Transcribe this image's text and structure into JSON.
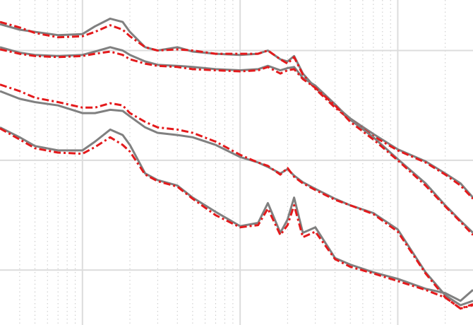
{
  "chart_data": {
    "type": "line",
    "xscale": "log",
    "grid": true,
    "xlim": [
      0.3,
      300
    ],
    "ylim": [
      -2.5,
      0.46
    ],
    "xticks": [
      1,
      10,
      100
    ],
    "yticks": [
      -2,
      -1,
      0
    ],
    "xminorticks": [
      0.4,
      0.5,
      0.6,
      0.7,
      0.8,
      0.9,
      2,
      3,
      4,
      5,
      6,
      7,
      8,
      9,
      20,
      30,
      40,
      50,
      60,
      70,
      80,
      90,
      200
    ],
    "x": [
      0.3,
      0.4,
      0.5,
      0.7,
      1,
      1.2,
      1.5,
      1.8,
      2,
      2.5,
      3,
      4,
      5,
      7,
      10,
      13,
      15,
      18,
      20,
      22,
      25,
      30,
      40,
      50,
      70,
      100,
      150,
      200,
      250,
      300
    ],
    "series": [
      {
        "color": "#808080",
        "style": "solid",
        "values": [
          0.24,
          0.19,
          0.17,
          0.14,
          0.15,
          0.22,
          0.29,
          0.26,
          0.17,
          0.03,
          0,
          0.03,
          -0.01,
          -0.03,
          -0.04,
          -0.03,
          0,
          -0.08,
          -0.1,
          -0.05,
          -0.21,
          -0.34,
          -0.5,
          -0.62,
          -0.76,
          -0.9,
          -1.01,
          -1.12,
          -1.21,
          -1.34
        ]
      },
      {
        "color": "#e41a1c",
        "style": "dashdot",
        "values": [
          0.26,
          0.21,
          0.16,
          0.12,
          0.13,
          0.17,
          0.23,
          0.19,
          0.13,
          0.03,
          0,
          0.01,
          0,
          -0.03,
          -0.03,
          -0.03,
          0,
          -0.08,
          -0.12,
          -0.06,
          -0.22,
          -0.35,
          -0.52,
          -0.63,
          -0.78,
          -0.91,
          -1.02,
          -1.13,
          -1.23,
          -1.35
        ]
      },
      {
        "color": "#808080",
        "style": "solid",
        "values": [
          0.03,
          -0.02,
          -0.04,
          -0.05,
          -0.04,
          -0.01,
          0.03,
          0,
          -0.04,
          -0.1,
          -0.13,
          -0.14,
          -0.15,
          -0.17,
          -0.18,
          -0.17,
          -0.14,
          -0.18,
          -0.16,
          -0.15,
          -0.25,
          -0.32,
          -0.49,
          -0.63,
          -0.79,
          -0.99,
          -1.21,
          -1.41,
          -1.55,
          -1.66
        ]
      },
      {
        "color": "#e41a1c",
        "style": "dashdot",
        "values": [
          0.01,
          -0.03,
          -0.05,
          -0.06,
          -0.05,
          -0.03,
          -0.01,
          -0.04,
          -0.08,
          -0.12,
          -0.14,
          -0.15,
          -0.17,
          -0.18,
          -0.19,
          -0.18,
          -0.15,
          -0.21,
          -0.18,
          -0.17,
          -0.26,
          -0.34,
          -0.5,
          -0.65,
          -0.81,
          -1.0,
          -1.23,
          -1.42,
          -1.56,
          -1.68
        ]
      },
      {
        "color": "#808080",
        "style": "solid",
        "values": [
          -0.37,
          -0.44,
          -0.47,
          -0.5,
          -0.57,
          -0.57,
          -0.54,
          -0.55,
          -0.6,
          -0.7,
          -0.75,
          -0.77,
          -0.79,
          -0.86,
          -0.97,
          -1.02,
          -1.06,
          -1.12,
          -1.08,
          -1.14,
          -1.2,
          -1.26,
          -1.35,
          -1.41,
          -1.48,
          -1.63,
          -2.02,
          -2.23,
          -2.32,
          -2.28
        ]
      },
      {
        "color": "#e41a1c",
        "style": "dashdot",
        "values": [
          -0.31,
          -0.37,
          -0.43,
          -0.47,
          -0.52,
          -0.52,
          -0.48,
          -0.5,
          -0.57,
          -0.65,
          -0.7,
          -0.72,
          -0.75,
          -0.83,
          -0.95,
          -1.02,
          -1.05,
          -1.13,
          -1.07,
          -1.15,
          -1.21,
          -1.27,
          -1.36,
          -1.41,
          -1.49,
          -1.65,
          -2.03,
          -2.25,
          -2.35,
          -2.31
        ]
      },
      {
        "color": "#808080",
        "style": "solid",
        "values": [
          -0.7,
          -0.79,
          -0.87,
          -0.91,
          -0.91,
          -0.83,
          -0.72,
          -0.77,
          -0.86,
          -1.12,
          -1.18,
          -1.23,
          -1.34,
          -1.47,
          -1.6,
          -1.57,
          -1.39,
          -1.66,
          -1.54,
          -1.34,
          -1.66,
          -1.61,
          -1.89,
          -1.95,
          -2.02,
          -2.08,
          -2.17,
          -2.21,
          -2.28,
          -2.18
        ]
      },
      {
        "color": "#e41a1c",
        "style": "dashdot",
        "values": [
          -0.71,
          -0.81,
          -0.89,
          -0.93,
          -0.94,
          -0.88,
          -0.79,
          -0.86,
          -0.92,
          -1.13,
          -1.19,
          -1.24,
          -1.35,
          -1.5,
          -1.61,
          -1.59,
          -1.44,
          -1.68,
          -1.59,
          -1.41,
          -1.7,
          -1.65,
          -1.9,
          -1.97,
          -2.03,
          -2.1,
          -2.18,
          -2.25,
          -2.35,
          -2.32
        ]
      }
    ]
  }
}
